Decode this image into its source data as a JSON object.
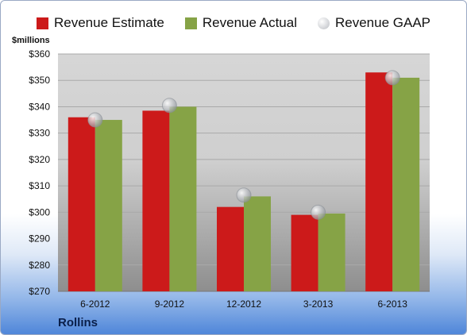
{
  "legend": {
    "estimate_label": "Revenue Estimate",
    "actual_label": "Revenue Actual",
    "gaap_label": "Revenue GAAP"
  },
  "unit_label": "$millions",
  "company_name": "Rollins",
  "colors": {
    "estimate": "#cc1a1a",
    "actual": "#86a346",
    "gaap": "#b9bcc2",
    "plot_top": "#d6d6d6",
    "plot_bottom": "#8e8e8e"
  },
  "chart_data": {
    "type": "bar",
    "categories": [
      "6-2012",
      "9-2012",
      "12-2012",
      "3-2013",
      "6-2013"
    ],
    "series": [
      {
        "name": "Revenue Estimate",
        "values": [
          336,
          338.5,
          302,
          299,
          353
        ]
      },
      {
        "name": "Revenue Actual",
        "values": [
          335,
          340,
          306,
          299.5,
          351
        ]
      },
      {
        "name": "Revenue GAAP",
        "marker": "circle",
        "values": [
          335,
          340.5,
          306.5,
          300,
          351
        ]
      }
    ],
    "ylim": [
      270,
      360
    ],
    "yticks": [
      "$270",
      "$280",
      "$290",
      "$300",
      "$310",
      "$320",
      "$330",
      "$340",
      "$350",
      "$360"
    ],
    "ytick_values": [
      270,
      280,
      290,
      300,
      310,
      320,
      330,
      340,
      350,
      360
    ],
    "ylabel": "$millions",
    "legend_position": "top",
    "grid": true
  }
}
